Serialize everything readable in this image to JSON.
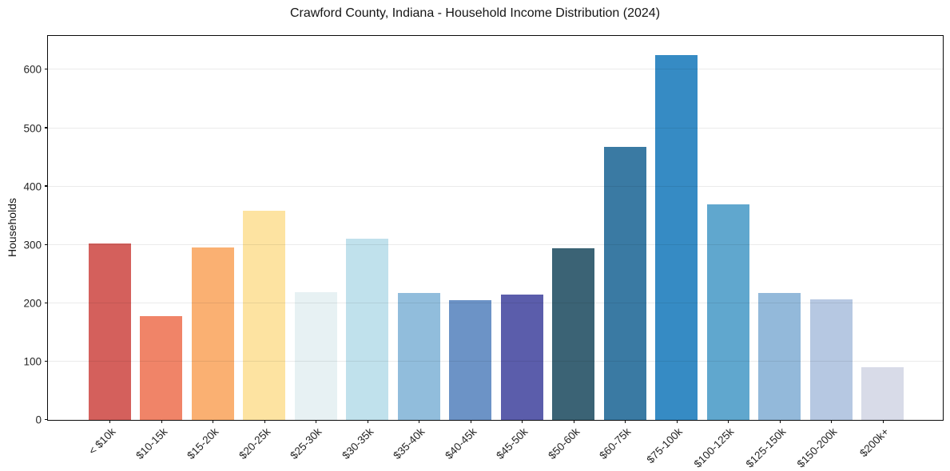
{
  "title": "Crawford County, Indiana - Household Income Distribution (2024)",
  "chart_data": {
    "type": "bar",
    "title": "Crawford County, Indiana - Household Income Distribution (2024)",
    "xlabel": "",
    "ylabel": "Households",
    "categories": [
      "< $10k",
      "$10-15k",
      "$15-20k",
      "$20-25k",
      "$25-30k",
      "$30-35k",
      "$35-40k",
      "$40-45k",
      "$45-50k",
      "$50-60k",
      "$60-75k",
      "$75-100k",
      "$100-125k",
      "$125-150k",
      "$150-200k",
      "$200k+"
    ],
    "values": [
      302,
      178,
      296,
      358,
      219,
      310,
      217,
      205,
      215,
      294,
      468,
      625,
      369,
      218,
      207,
      90
    ],
    "bar_colors": [
      "#d4605c",
      "#f08468",
      "#fab072",
      "#fde3a1",
      "#e7f1f3",
      "#c0e1ec",
      "#91bddc",
      "#6c93c6",
      "#5b5dab",
      "#3b6375",
      "#3a7aa3",
      "#368bc4",
      "#60a7ce",
      "#93b9da",
      "#b6c8e2",
      "#d8dbe8"
    ],
    "yticks": [
      0,
      100,
      200,
      300,
      400,
      500,
      600
    ],
    "ylim": [
      0,
      658
    ],
    "grid": "horizontal-only",
    "legend": "none",
    "background_color": "#ffffff"
  }
}
